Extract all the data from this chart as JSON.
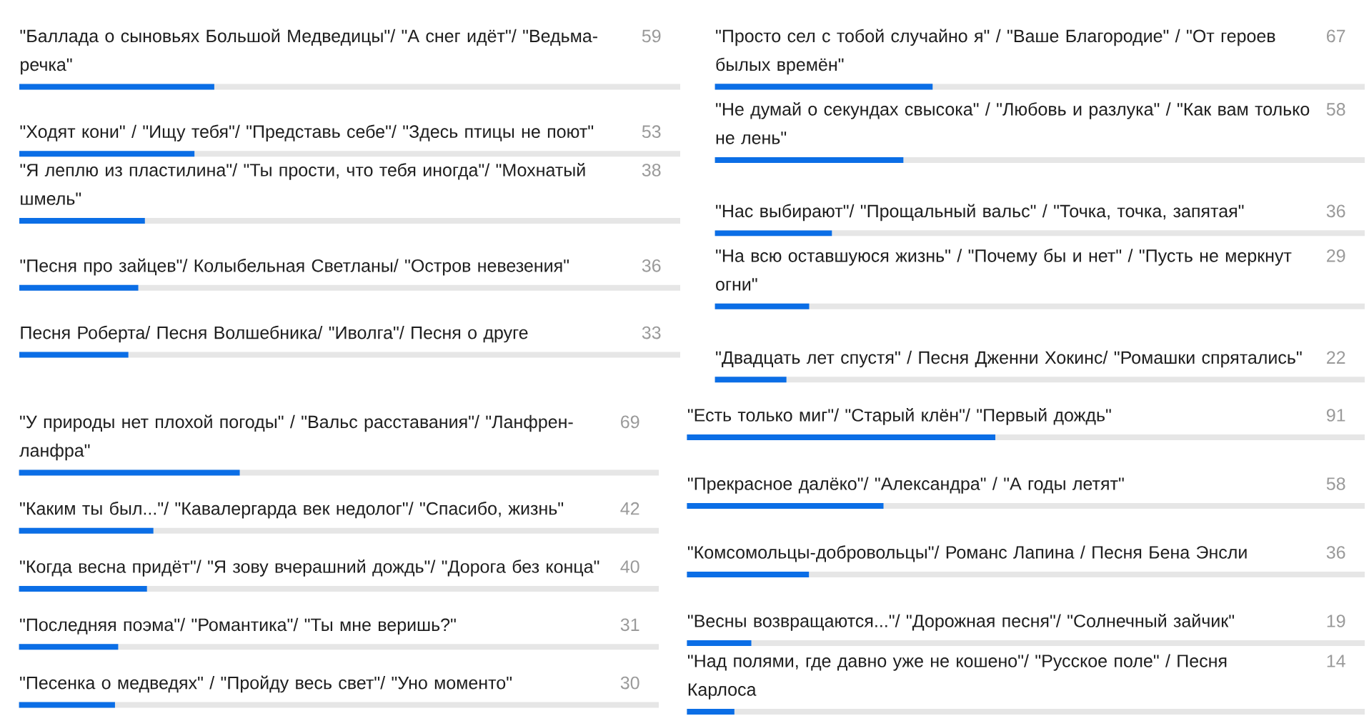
{
  "chart_data": [
    {
      "type": "bar",
      "orientation": "horizontal",
      "categories": [
        "\"Баллада о сыновьях Большой Медведицы\"/ \"А снег идёт\"/ \"Ведьма-речка\"",
        "\"Ходят кони\" / \"Ищу тебя\"/ \"Представь себе\"/ \"Здесь птицы не поют\"",
        "\"Я леплю из пластилина\"/ \"Ты прости, что тебя иногда\"/ \"Мохнатый шмель\"",
        "\"Песня про зайцев\"/ Колыбельная Светланы/ \"Остров невезения\"",
        "Песня Роберта/ Песня Волшебника/ \"Иволга\"/ Песня о друге"
      ],
      "values": [
        59,
        53,
        38,
        36,
        33
      ],
      "color": "#0b6ee6",
      "xlim": [
        0,
        200
      ],
      "data_labels": true,
      "tick_labels": "y"
    },
    {
      "type": "bar",
      "orientation": "horizontal",
      "categories": [
        "\"Просто сел с тобой случайно я\" / \"Ваше Благородие\" / \"От героев былых времён\"",
        "\"Не думай о секундах свысока\" / \"Любовь и разлука\" / \"Как вам только не лень\"",
        "\"Нас выбирают\"/ \"Прощальный вальс\" / \"Точка, точка, запятая\"",
        "\"На всю оставшуюся жизнь\" / \"Почему бы и нет\" / \"Пусть не меркнут огни\"",
        "\"Двадцать лет спустя\" / Песня Дженни Хокинс/ \"Ромашки спрятались\""
      ],
      "values": [
        67,
        58,
        36,
        29,
        22
      ],
      "color": "#0b6ee6",
      "xlim": [
        0,
        200
      ],
      "data_labels": true,
      "tick_labels": "y"
    },
    {
      "type": "bar",
      "orientation": "horizontal",
      "categories": [
        "\"У природы нет плохой погоды\" / \"Вальс расставания\"/ \"Ланфрен-ланфра\"",
        "\"Каким ты был...\"/ \"Кавалергарда век недолог\"/ \"Спасибо, жизнь\"",
        "\"Когда весна придёт\"/ \"Я зову вчерашний дождь\"/ \"Дорога без конца\"",
        "\"Последняя поэма\"/ \"Романтика\"/ \"Ты мне веришь?\"",
        "\"Песенка о медведях\" / \"Пройду весь свет\"/ \"Уно моменто\""
      ],
      "values": [
        69,
        42,
        40,
        31,
        30
      ],
      "color": "#0b6ee6",
      "xlim": [
        0,
        200
      ],
      "data_labels": true,
      "tick_labels": "y"
    },
    {
      "type": "bar",
      "orientation": "horizontal",
      "categories": [
        "\"Есть только миг\"/ \"Старый клён\"/ \"Первый дождь\"",
        "\"Прекрасное далёко\"/ \"Александра\" / \"А годы летят\"",
        "\"Комсомольцы-добровольцы\"/ Романс Лапина / Песня Бена Энсли",
        "\"Весны возвращаются...\"/ \"Дорожная песня\"/ \"Солнечный зайчик\"",
        "\"Над полями, где давно уже не кошено\"/ \"Русское поле\" / Песня Карлоса"
      ],
      "values": [
        91,
        58,
        36,
        19,
        14
      ],
      "color": "#0b6ee6",
      "xlim": [
        0,
        200
      ],
      "data_labels": true,
      "tick_labels": "y"
    }
  ]
}
